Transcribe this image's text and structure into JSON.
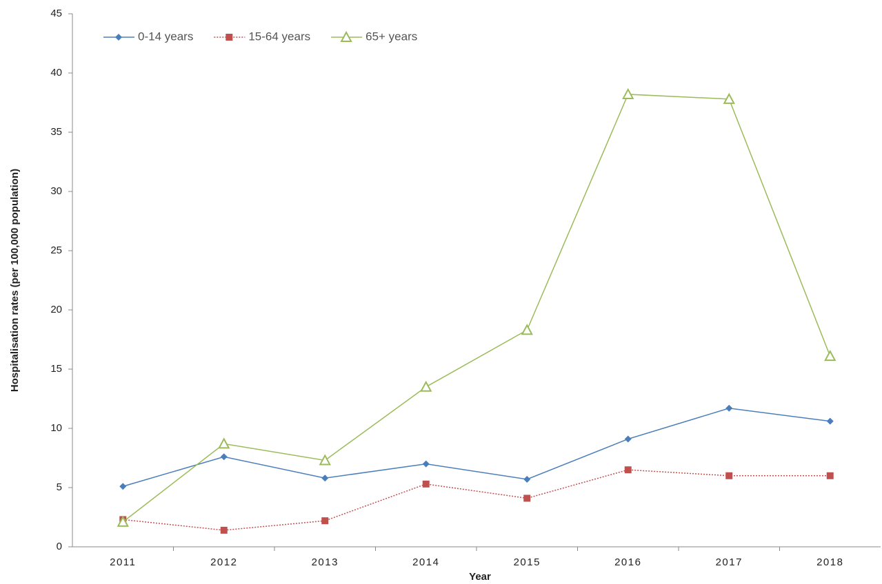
{
  "chart_data": {
    "type": "line",
    "x_label": "Year",
    "y_label": "Hospitalisation rates (per 100,000 population)",
    "categories": [
      "2011",
      "2012",
      "2013",
      "2014",
      "2015",
      "2016",
      "2017",
      "2018"
    ],
    "series": [
      {
        "name": "0-14 years",
        "color": "#4a7ebb",
        "marker": "diamond",
        "line_style": "solid",
        "values": [
          5.1,
          7.6,
          5.8,
          7.0,
          5.7,
          9.1,
          11.7,
          10.6
        ]
      },
      {
        "name": "15-64 years",
        "color": "#c0504d",
        "marker": "square",
        "line_style": "dotted",
        "values": [
          2.3,
          1.4,
          2.2,
          5.3,
          4.1,
          6.5,
          6.0,
          6.0
        ]
      },
      {
        "name": "65+ years",
        "color": "#9bbb59",
        "marker": "open-triangle",
        "line_style": "solid",
        "values": [
          2.1,
          8.7,
          7.3,
          13.5,
          18.3,
          38.2,
          37.8,
          16.1
        ]
      }
    ],
    "ylim": [
      0,
      45
    ],
    "yticks": [
      0,
      5,
      10,
      15,
      20,
      25,
      30,
      35,
      40,
      45
    ],
    "grid": false,
    "legend": "top-left"
  }
}
